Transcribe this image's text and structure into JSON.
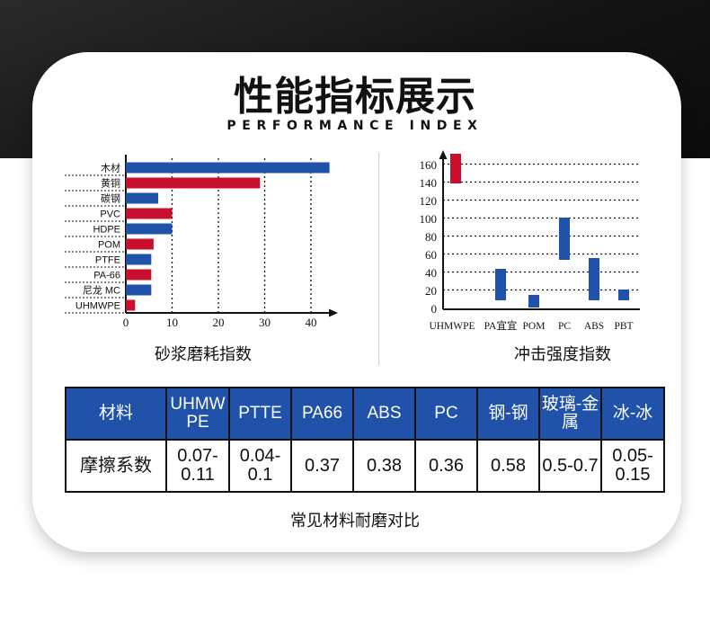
{
  "header": {
    "title": "性能指标展示",
    "subtitle": "PERFORMANCE INDEX"
  },
  "chart_data": [
    {
      "type": "bar",
      "orientation": "horizontal",
      "title": "砂浆磨耗指数",
      "categories": [
        "木材",
        "黄铜",
        "碳钢",
        "PVC",
        "HDPE",
        "POM",
        "PTFE",
        "PA-66",
        "尼龙 MC",
        "UHMWPE"
      ],
      "values": [
        44,
        29,
        7,
        10,
        10,
        6,
        5.5,
        5.5,
        5.5,
        2
      ],
      "colors": [
        "#1f52a8",
        "#c8102e",
        "#1f52a8",
        "#c8102e",
        "#1f52a8",
        "#c8102e",
        "#1f52a8",
        "#c8102e",
        "#1f52a8",
        "#c8102e"
      ],
      "xticks": [
        "0",
        "10",
        "20",
        "30",
        "40"
      ],
      "xlim": [
        0,
        46
      ],
      "grid": true
    },
    {
      "type": "bar",
      "subtype": "range",
      "title": "冲击强度指数",
      "categories": [
        "UHMWPE",
        "PA宜宜",
        "POM",
        "PC",
        "ABS",
        "PBT"
      ],
      "ranges": [
        [
          140,
          175
        ],
        [
          10,
          45
        ],
        [
          2,
          16
        ],
        [
          55,
          102
        ],
        [
          10,
          57
        ],
        [
          10,
          22
        ]
      ],
      "colors": [
        "#c8102e",
        "#1f52a8",
        "#1f52a8",
        "#1f52a8",
        "#1f52a8",
        "#1f52a8"
      ],
      "yticks": [
        "0",
        "20",
        "40",
        "60",
        "80",
        "100",
        "120",
        "140",
        "160"
      ],
      "ylim": [
        0,
        175
      ],
      "grid": true
    }
  ],
  "table": {
    "headers": [
      "材料",
      "UHMW PE",
      "PTTE",
      "PA66",
      "ABS",
      "PC",
      "钢-钢",
      "玻璃-金属",
      "冰-冰"
    ],
    "row_label": "摩擦系数",
    "values": [
      "0.07-0.11",
      "0.04-0.1",
      "0.37",
      "0.38",
      "0.36",
      "0.58",
      "0.5-0.7",
      "0.05-0.15"
    ],
    "caption": "常见材料耐磨对比"
  },
  "colors": {
    "blue": "#1f52a8",
    "red": "#c8102e",
    "dark": "#111111"
  }
}
